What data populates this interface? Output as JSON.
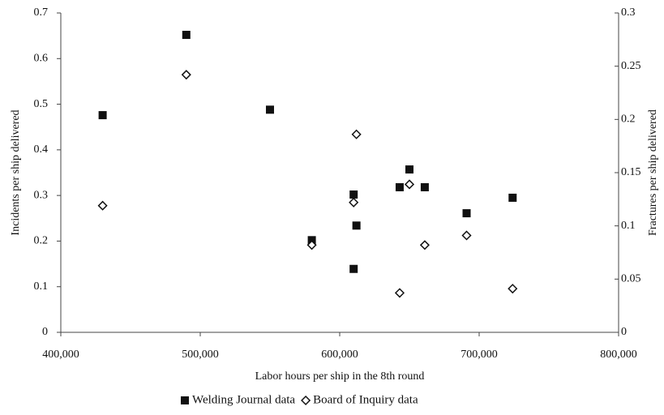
{
  "chart_data": {
    "type": "scatter",
    "xlabel": "Labor hours per ship in the 8th round",
    "ylabel": "Incidents per ship delivered",
    "y2label": "Fractures per ship delivered",
    "xlim": [
      400000,
      800000
    ],
    "xticks": [
      {
        "value": 400000,
        "label": "400,000"
      },
      {
        "value": 500000,
        "label": "500,000"
      },
      {
        "value": 600000,
        "label": "600,000"
      },
      {
        "value": 700000,
        "label": "700,000"
      },
      {
        "value": 800000,
        "label": "800,000"
      }
    ],
    "ylim": [
      0,
      0.7
    ],
    "yticks": [
      0,
      0.1,
      0.2,
      0.3,
      0.4,
      0.5,
      0.6,
      0.7
    ],
    "y2lim": [
      0,
      0.3
    ],
    "y2ticks": [
      0,
      0.05,
      0.1,
      0.15,
      0.2,
      0.25,
      0.3
    ],
    "series": [
      {
        "name": "Welding Journal data",
        "color": "#111111",
        "marker": "square",
        "x": [
          430000,
          490000,
          550000,
          580000,
          610000,
          610000,
          612000,
          643000,
          650000,
          661000,
          691000,
          724000
        ],
        "values": [
          0.476,
          0.652,
          0.488,
          0.202,
          0.302,
          0.139,
          0.234,
          0.318,
          0.357,
          0.318,
          0.261,
          0.295
        ]
      },
      {
        "name": "Board of Inquiry data",
        "color": "#111111",
        "marker": "diamond",
        "axis": "y2",
        "x": [
          430000,
          490000,
          580000,
          610000,
          612000,
          643000,
          650000,
          661000,
          691000,
          724000
        ],
        "values": [
          0.119,
          0.242,
          0.082,
          0.122,
          0.186,
          0.037,
          0.139,
          0.082,
          0.091,
          0.041
        ]
      }
    ]
  }
}
